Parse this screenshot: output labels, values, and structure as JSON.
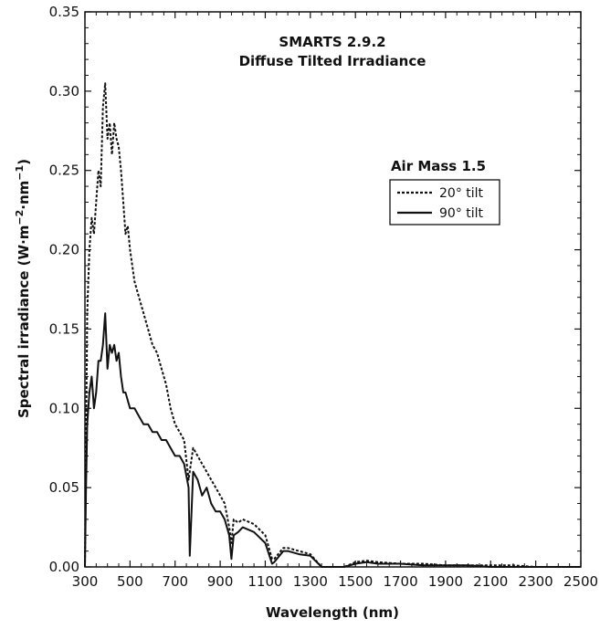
{
  "chart_data": {
    "type": "line",
    "title": "SMARTS 2.9.2",
    "subtitle": "Diffuse Tilted Irradiance",
    "xlabel": "Wavelength (nm)",
    "ylabel_main": "Spectral irradiance (W·m",
    "ylabel_sup1": "−2",
    "ylabel_mid": "·nm",
    "ylabel_sup2": "−1",
    "ylabel_end": ")",
    "xlim": [
      300,
      2500
    ],
    "ylim": [
      0,
      0.35
    ],
    "xticks": [
      300,
      500,
      700,
      900,
      1100,
      1300,
      1500,
      1700,
      1900,
      2100,
      2300,
      2500
    ],
    "yticks": [
      "0.00",
      "0.05",
      "0.10",
      "0.15",
      "0.20",
      "0.25",
      "0.30",
      "0.35"
    ],
    "legend": {
      "title": "Air Mass 1.5",
      "placement": "upper-right"
    },
    "series": [
      {
        "name": "20° tilt",
        "style": "dotted",
        "x": [
          300,
          310,
          320,
          330,
          340,
          350,
          360,
          370,
          380,
          390,
          400,
          410,
          420,
          430,
          440,
          450,
          460,
          470,
          480,
          490,
          500,
          520,
          540,
          560,
          580,
          600,
          620,
          640,
          660,
          680,
          700,
          720,
          740,
          760,
          780,
          800,
          820,
          840,
          860,
          880,
          900,
          920,
          940,
          950,
          960,
          980,
          1000,
          1050,
          1100,
          1130,
          1140,
          1180,
          1200,
          1250,
          1300,
          1350,
          1400,
          1450,
          1500,
          1550,
          1600,
          1700,
          1800,
          1900,
          2000,
          2100,
          2200,
          2300,
          2400,
          2500
        ],
        "y": [
          0.0,
          0.16,
          0.2,
          0.22,
          0.21,
          0.23,
          0.25,
          0.24,
          0.29,
          0.305,
          0.27,
          0.28,
          0.26,
          0.28,
          0.27,
          0.265,
          0.25,
          0.23,
          0.21,
          0.215,
          0.2,
          0.18,
          0.17,
          0.16,
          0.15,
          0.14,
          0.135,
          0.125,
          0.115,
          0.1,
          0.09,
          0.085,
          0.08,
          0.055,
          0.075,
          0.07,
          0.065,
          0.06,
          0.055,
          0.05,
          0.045,
          0.04,
          0.025,
          0.015,
          0.03,
          0.028,
          0.03,
          0.027,
          0.02,
          0.005,
          0.005,
          0.012,
          0.012,
          0.01,
          0.008,
          0.0,
          0.0,
          0.0,
          0.003,
          0.004,
          0.003,
          0.002,
          0.002,
          0.001,
          0.001,
          0.001,
          0.001,
          0.0,
          0.0,
          0.0
        ]
      },
      {
        "name": "90° tilt",
        "style": "solid",
        "x": [
          300,
          305,
          310,
          320,
          330,
          340,
          350,
          360,
          370,
          380,
          390,
          400,
          410,
          420,
          430,
          440,
          450,
          460,
          470,
          480,
          490,
          500,
          520,
          540,
          560,
          580,
          600,
          620,
          640,
          660,
          680,
          700,
          720,
          740,
          760,
          765,
          780,
          800,
          820,
          840,
          860,
          880,
          900,
          920,
          940,
          950,
          960,
          980,
          1000,
          1050,
          1100,
          1130,
          1140,
          1180,
          1200,
          1250,
          1300,
          1350,
          1400,
          1450,
          1500,
          1550,
          1600,
          1700,
          1800,
          1900,
          2000,
          2100,
          2200,
          2300,
          2400,
          2500
        ],
        "y": [
          0.0,
          0.05,
          0.09,
          0.11,
          0.12,
          0.1,
          0.11,
          0.13,
          0.13,
          0.14,
          0.16,
          0.125,
          0.14,
          0.135,
          0.14,
          0.13,
          0.135,
          0.12,
          0.11,
          0.11,
          0.105,
          0.1,
          0.1,
          0.095,
          0.09,
          0.09,
          0.085,
          0.085,
          0.08,
          0.08,
          0.075,
          0.07,
          0.07,
          0.065,
          0.05,
          0.007,
          0.06,
          0.055,
          0.045,
          0.05,
          0.04,
          0.035,
          0.035,
          0.03,
          0.02,
          0.005,
          0.02,
          0.022,
          0.025,
          0.022,
          0.015,
          0.002,
          0.003,
          0.01,
          0.01,
          0.008,
          0.007,
          0.0,
          0.0,
          0.0,
          0.002,
          0.003,
          0.002,
          0.002,
          0.001,
          0.001,
          0.001,
          0.0,
          0.0,
          0.0,
          0.0,
          0.0
        ]
      }
    ]
  }
}
